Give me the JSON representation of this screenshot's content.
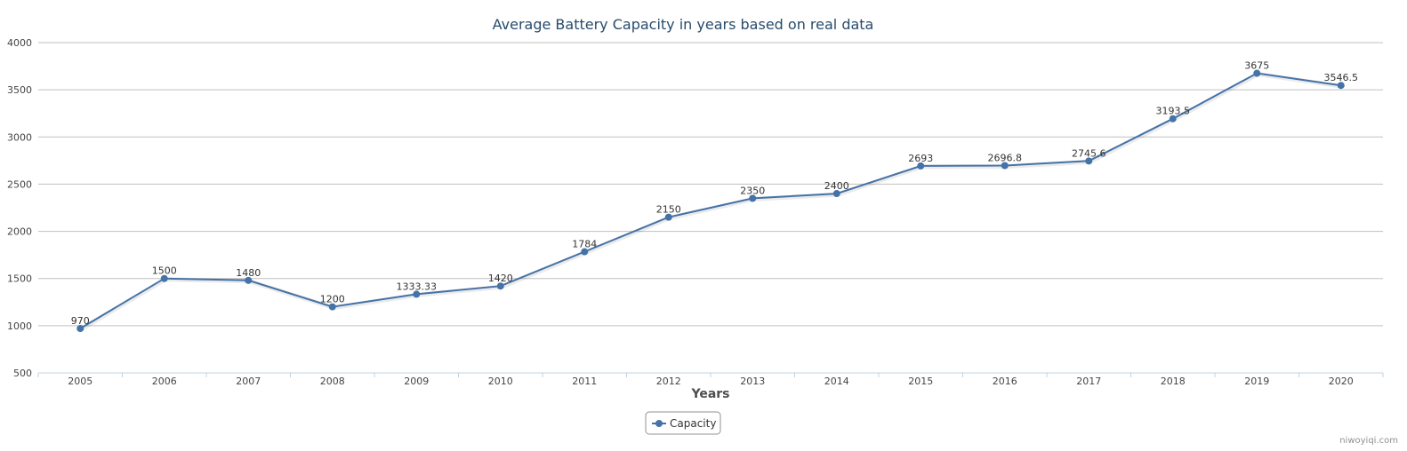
{
  "credit": "niwoyiqi.com",
  "colors": {
    "series": "#4572a7",
    "grid": "#c0c0c0",
    "axis": "#c0d0e0",
    "title": "#274b6d"
  },
  "chart_data": {
    "type": "line",
    "title": "Average Battery Capacity in years based on real data",
    "xlabel": "Years",
    "ylabel": "",
    "categories": [
      "2005",
      "2006",
      "2007",
      "2008",
      "2009",
      "2010",
      "2011",
      "2012",
      "2013",
      "2014",
      "2015",
      "2016",
      "2017",
      "2018",
      "2019",
      "2020"
    ],
    "series": [
      {
        "name": "Capacity",
        "values": [
          970,
          1500,
          1480,
          1200,
          1333.33,
          1420,
          1784,
          2150,
          2350,
          2400,
          2693,
          2696.8,
          2745.6,
          3193.5,
          3675,
          3546.5
        ]
      }
    ],
    "ylim": [
      500,
      4000
    ],
    "yticks": [
      500,
      1000,
      1500,
      2000,
      2500,
      3000,
      3500,
      4000
    ],
    "grid": true,
    "legend": "bottom-center"
  }
}
